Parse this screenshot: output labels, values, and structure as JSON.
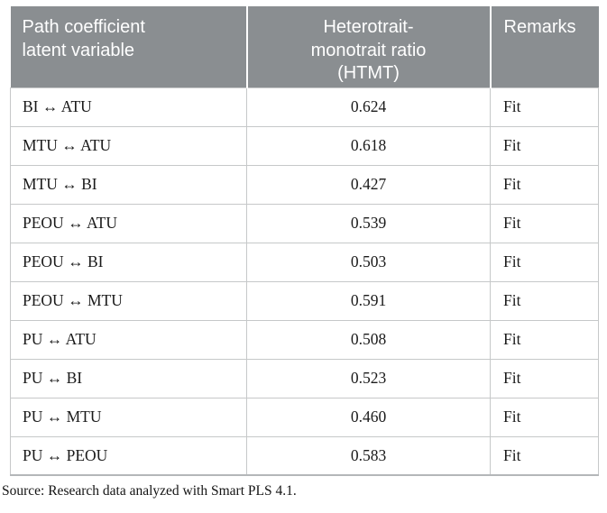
{
  "colors": {
    "header_background": "#8a8e91",
    "header_text": "#ffffff",
    "body_text": "#1a1a1a",
    "grid_border": "#c6c8c9",
    "page_background": "#ffffff"
  },
  "table": {
    "header": {
      "pair": "Path coefficient\nlatent variable",
      "htmt": "Heterotrait-\nmonotrait ratio\n(HTMT)",
      "remark": "Remarks"
    },
    "rows": [
      {
        "pair": "BI ↔ ATU",
        "htmt": "0.624",
        "remark": "Fit"
      },
      {
        "pair": "MTU ↔ ATU",
        "htmt": "0.618",
        "remark": "Fit"
      },
      {
        "pair": "MTU ↔ BI",
        "htmt": "0.427",
        "remark": "Fit"
      },
      {
        "pair": "PEOU ↔ ATU",
        "htmt": "0.539",
        "remark": "Fit"
      },
      {
        "pair": "PEOU ↔ BI",
        "htmt": "0.503",
        "remark": "Fit"
      },
      {
        "pair": "PEOU ↔ MTU",
        "htmt": "0.591",
        "remark": "Fit"
      },
      {
        "pair": "PU ↔ ATU",
        "htmt": "0.508",
        "remark": "Fit"
      },
      {
        "pair": "PU ↔ BI",
        "htmt": "0.523",
        "remark": "Fit"
      },
      {
        "pair": "PU ↔ MTU",
        "htmt": "0.460",
        "remark": "Fit"
      },
      {
        "pair": "PU ↔ PEOU",
        "htmt": "0.583",
        "remark": "Fit"
      }
    ]
  },
  "source_note": "Source: Research data analyzed with Smart PLS 4.1."
}
